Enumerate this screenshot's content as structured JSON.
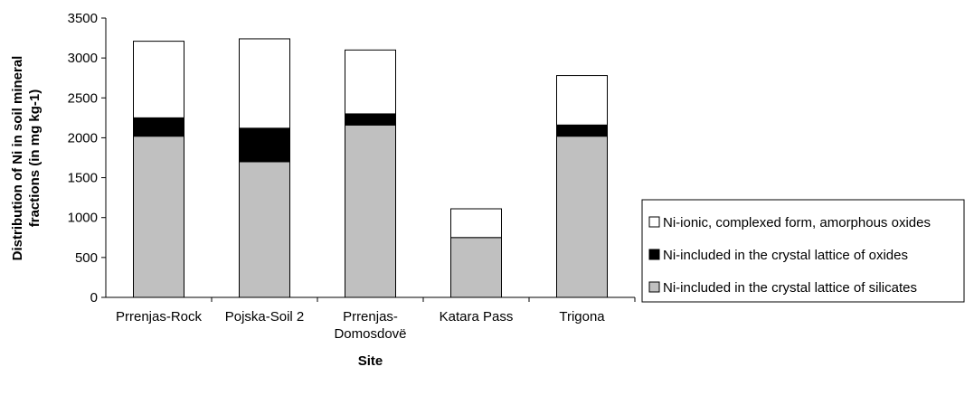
{
  "chart_data": {
    "type": "bar",
    "stacked": true,
    "title": "",
    "xlabel": "Site",
    "ylabel_lines": [
      "Distribution of Ni in soil mineral",
      "fractions (in mg kg-1)"
    ],
    "ylim": [
      0,
      3500
    ],
    "yticks": [
      0,
      500,
      1000,
      1500,
      2000,
      2500,
      3000,
      3500
    ],
    "categories": [
      [
        "Prrenjas-Rock"
      ],
      [
        "Pojska-Soil 2"
      ],
      [
        "Prrenjas-",
        "Domosdovë"
      ],
      [
        "Katara Pass"
      ],
      [
        "Trigona"
      ]
    ],
    "series": [
      {
        "name": "Ni-included in the crystal lattice of silicates",
        "color": "#c0c0c0",
        "values": [
          2020,
          1700,
          2160,
          750,
          2020
        ]
      },
      {
        "name": "Ni-included in the crystal lattice of oxides",
        "color": "#000000",
        "values": [
          230,
          420,
          140,
          0,
          140
        ]
      },
      {
        "name": "Ni-ionic, complexed form, amorphous oxides",
        "color": "#ffffff",
        "values": [
          960,
          1120,
          800,
          360,
          620
        ]
      }
    ],
    "legend_order": [
      2,
      1,
      0
    ],
    "legend_position": "right",
    "grid": false
  }
}
